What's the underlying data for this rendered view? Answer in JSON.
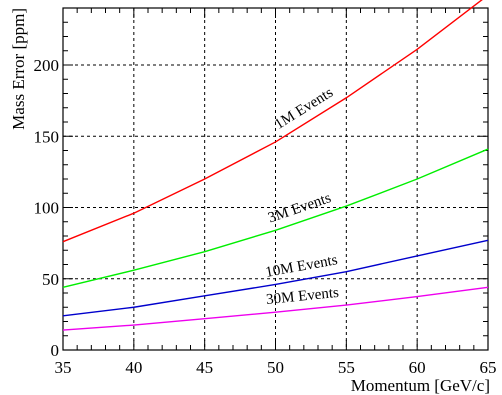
{
  "chart_data": {
    "type": "line",
    "title": "",
    "xlabel": "Momentum [GeV/c]",
    "ylabel": "Mass Error [ppm]",
    "xlim": [
      35,
      65
    ],
    "ylim": [
      0,
      240
    ],
    "x_ticks": [
      35,
      40,
      45,
      50,
      55,
      60,
      65
    ],
    "y_ticks": [
      0,
      50,
      100,
      150,
      200
    ],
    "grid": true,
    "x": [
      35,
      40,
      45,
      50,
      55,
      60,
      65
    ],
    "series": [
      {
        "name": "1M Events",
        "color": "#ff0000",
        "values": [
          76,
          96,
          120,
          146,
          177,
          211,
          249
        ]
      },
      {
        "name": "3M Events",
        "color": "#00ee00",
        "values": [
          44,
          56,
          69,
          84,
          101,
          120,
          141
        ]
      },
      {
        "name": "10M Events",
        "color": "#0000cc",
        "values": [
          24,
          30,
          38,
          46,
          55,
          66,
          77
        ]
      },
      {
        "name": "30M Events",
        "color": "#ee00ee",
        "values": [
          14,
          17.5,
          22,
          26.5,
          31.5,
          37.5,
          44
        ]
      }
    ]
  }
}
